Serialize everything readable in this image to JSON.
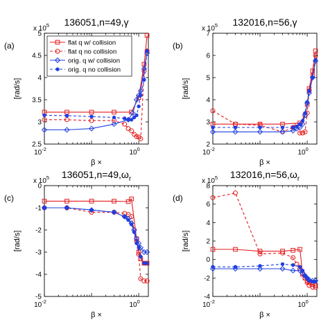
{
  "chart_data": [
    {
      "type": "line",
      "panel_label": "(a)",
      "title": "136051,n=49,γ",
      "xlabel": "β ×",
      "ylabel": "[rad/s]",
      "x_scale": "log",
      "xlim": [
        0.01,
        1.6
      ],
      "x_tick_labels": [
        "10",
        "-2",
        "10",
        "0"
      ],
      "ylim": [
        2.5,
        5
      ],
      "y_ticks": [
        "2.5",
        "3",
        "3.5",
        "4",
        "4.5",
        "5"
      ],
      "y_multiplier": [
        "x 10",
        "5"
      ],
      "grid": false,
      "legend_position": "top-left",
      "series": [
        {
          "name": "flat q w/ collision",
          "color": "#e31a1c",
          "style": "solid",
          "marker": "square",
          "x": [
            0.01,
            0.03,
            0.1,
            0.3,
            0.7,
            1.0,
            1.3,
            1.5
          ],
          "y": [
            3.22,
            3.22,
            3.22,
            3.22,
            3.22,
            3.55,
            4.3,
            4.95
          ]
        },
        {
          "name": "flat q no collision",
          "color": "#e31a1c",
          "style": "dashed",
          "marker": "circle",
          "x": [
            0.01,
            0.03,
            0.1,
            0.3,
            0.5,
            0.6,
            0.7,
            0.8,
            0.9,
            1.0,
            1.1,
            1.3,
            1.5
          ],
          "y": [
            3.05,
            3.05,
            3.03,
            3.03,
            2.95,
            2.85,
            2.8,
            2.72,
            2.67,
            2.66,
            2.62,
            4.15,
            4.6
          ]
        },
        {
          "name": "orig. q w/ collision",
          "color": "#1f3fe0",
          "style": "solid",
          "marker": "diamond",
          "x": [
            0.01,
            0.03,
            0.1,
            0.3,
            0.6,
            0.75,
            0.9,
            1.0,
            1.1,
            1.3,
            1.5
          ],
          "y": [
            2.82,
            2.82,
            2.85,
            2.95,
            3.05,
            3.2,
            3.5,
            3.6,
            3.7,
            4.2,
            4.55
          ]
        },
        {
          "name": "orig. q no collision",
          "color": "#1f3fe0",
          "style": "dashed",
          "marker": "dot",
          "x": [
            0.01,
            0.03,
            0.1,
            0.3,
            0.5,
            0.6,
            0.7,
            0.8,
            0.9,
            1.0,
            1.1,
            1.3,
            1.5
          ],
          "y": [
            3.15,
            3.14,
            3.12,
            3.1,
            3.08,
            3.05,
            3.05,
            3.1,
            3.15,
            3.35,
            3.6,
            3.95,
            4.6
          ]
        }
      ]
    },
    {
      "type": "line",
      "panel_label": "(b)",
      "title": "132016,n=56,γ",
      "xlabel": "β ×",
      "ylabel": "[rad/s]",
      "x_scale": "log",
      "xlim": [
        0.01,
        1.6
      ],
      "x_tick_labels": [
        "10",
        "-2",
        "10",
        "0"
      ],
      "ylim": [
        2,
        7
      ],
      "y_ticks": [
        "2",
        "3",
        "4",
        "5",
        "6",
        "7"
      ],
      "y_multiplier": [
        "x 10",
        "5"
      ],
      "grid": false,
      "series": [
        {
          "name": "flat q w/ collision",
          "color": "#e31a1c",
          "style": "solid",
          "marker": "square",
          "x": [
            0.01,
            0.03,
            0.1,
            0.3,
            0.7,
            0.9,
            1.0,
            1.1,
            1.3,
            1.5
          ],
          "y": [
            2.9,
            2.9,
            2.9,
            2.9,
            2.95,
            3.3,
            3.8,
            4.5,
            5.3,
            6.2
          ]
        },
        {
          "name": "flat q no collision",
          "color": "#e31a1c",
          "style": "dashed",
          "marker": "circle",
          "x": [
            0.01,
            0.03,
            0.1,
            0.3,
            0.5,
            0.6,
            0.7,
            0.8,
            0.9,
            1.0,
            1.1,
            1.3,
            1.5
          ],
          "y": [
            3.5,
            2.9,
            2.85,
            2.55,
            2.75,
            2.85,
            2.5,
            2.5,
            2.55,
            3.4,
            4.4,
            5.1,
            6.0
          ]
        },
        {
          "name": "orig. q w/ collision",
          "color": "#1f3fe0",
          "style": "solid",
          "marker": "diamond",
          "x": [
            0.01,
            0.03,
            0.1,
            0.3,
            0.5,
            0.6,
            0.7,
            0.8,
            0.9,
            1.0,
            1.1,
            1.3,
            1.5
          ],
          "y": [
            2.55,
            2.55,
            2.55,
            2.55,
            2.6,
            2.7,
            2.75,
            2.9,
            3.3,
            3.85,
            4.3,
            5.0,
            5.75
          ]
        },
        {
          "name": "orig. q no collision",
          "color": "#1f3fe0",
          "style": "dashed",
          "marker": "dot",
          "x": [
            0.01,
            0.03,
            0.1,
            0.3,
            0.5,
            0.6,
            0.7,
            0.8,
            0.9,
            1.0,
            1.1,
            1.3,
            1.5
          ],
          "y": [
            2.75,
            2.75,
            2.75,
            2.75,
            2.75,
            2.8,
            2.9,
            3.05,
            3.4,
            3.9,
            4.4,
            5.0,
            5.8
          ]
        }
      ]
    },
    {
      "type": "line",
      "panel_label": "(c)",
      "title": "136051,n=49,ω",
      "title_sub": "r",
      "xlabel": "β ×",
      "ylabel": "[rad/s]",
      "x_scale": "log",
      "xlim": [
        0.01,
        1.6
      ],
      "x_tick_labels": [
        "10",
        "-2",
        "10",
        "0"
      ],
      "ylim": [
        -5,
        0
      ],
      "y_ticks": [
        "-5",
        "-4",
        "-3",
        "-2",
        "-1",
        "0"
      ],
      "y_multiplier": [
        "x 10",
        "5"
      ],
      "grid": false,
      "series": [
        {
          "name": "flat q w/ collision",
          "color": "#e31a1c",
          "style": "solid",
          "marker": "square",
          "x": [
            0.01,
            0.03,
            0.1,
            0.3,
            0.6,
            0.7,
            0.9,
            1.0,
            1.1,
            1.3,
            1.5
          ],
          "y": [
            -0.7,
            -0.7,
            -0.7,
            -0.7,
            -0.72,
            -0.6,
            -2.4,
            -3.0,
            -3.3,
            -3.5,
            -3.5
          ]
        },
        {
          "name": "flat q no collision",
          "color": "#e31a1c",
          "style": "dashed",
          "marker": "circle",
          "x": [
            0.01,
            0.03,
            0.1,
            0.3,
            0.5,
            0.6,
            0.7,
            0.8,
            0.9,
            1.0,
            1.1,
            1.3,
            1.5
          ],
          "y": [
            -1.0,
            -1.0,
            -1.2,
            -1.2,
            -1.25,
            -1.3,
            -1.4,
            -2.0,
            -2.5,
            -3.1,
            -4.2,
            -4.3,
            -4.3
          ]
        },
        {
          "name": "orig. q w/ collision",
          "color": "#1f3fe0",
          "style": "solid",
          "marker": "diamond",
          "x": [
            0.01,
            0.03,
            0.1,
            0.3,
            0.5,
            0.6,
            0.7,
            0.8,
            0.9,
            1.0,
            1.1,
            1.3,
            1.5
          ],
          "y": [
            -1.0,
            -1.0,
            -1.1,
            -1.2,
            -1.4,
            -1.5,
            -1.7,
            -2.0,
            -2.4,
            -2.6,
            -2.8,
            -3.0,
            -3.0
          ]
        },
        {
          "name": "orig. q no collision",
          "color": "#1f3fe0",
          "style": "dashed",
          "marker": "dot",
          "x": [
            0.01,
            0.03,
            0.1,
            0.3,
            0.5,
            0.6,
            0.7,
            0.8,
            0.9,
            1.0,
            1.1,
            1.3,
            1.5
          ],
          "y": [
            -1.0,
            -1.0,
            -1.1,
            -1.2,
            -1.4,
            -1.55,
            -1.75,
            -2.1,
            -2.6,
            -2.8,
            -3.2,
            -3.5,
            -3.5
          ]
        }
      ]
    },
    {
      "type": "line",
      "panel_label": "(d)",
      "title": "132016,n=56,ω",
      "title_sub": "r",
      "xlabel": "β ×",
      "ylabel": "[rad/s]",
      "x_scale": "log",
      "xlim": [
        0.01,
        1.6
      ],
      "x_tick_labels": [
        "10",
        "-2",
        "10",
        "0"
      ],
      "ylim": [
        -4,
        8
      ],
      "y_ticks": [
        "-4",
        "-2",
        "0",
        "2",
        "4",
        "6",
        "8"
      ],
      "y_multiplier": [
        "x 10",
        "5"
      ],
      "grid": false,
      "series": [
        {
          "name": "flat q w/ collision",
          "color": "#e31a1c",
          "style": "solid",
          "marker": "square",
          "x": [
            0.01,
            0.03,
            0.1,
            0.3,
            0.5,
            0.7,
            0.8,
            0.9,
            1.0,
            1.1,
            1.3,
            1.5
          ],
          "y": [
            1.1,
            1.1,
            0.9,
            0.9,
            1.0,
            1.1,
            -1.6,
            -2.0,
            -2.3,
            -2.5,
            -2.7,
            -2.8
          ]
        },
        {
          "name": "flat q no collision",
          "color": "#e31a1c",
          "style": "dashed",
          "marker": "circle",
          "x": [
            0.01,
            0.03,
            0.1,
            0.3,
            0.5,
            0.6,
            0.7,
            0.8,
            0.9,
            1.0,
            1.1,
            1.3,
            1.5
          ],
          "y": [
            6.7,
            7.2,
            0.6,
            0.7,
            0.2,
            -0.5,
            -1.0,
            -1.5,
            -2.0,
            -2.5,
            -2.8,
            -3.0,
            -3.0
          ]
        },
        {
          "name": "orig. q w/ collision",
          "color": "#1f3fe0",
          "style": "solid",
          "marker": "diamond",
          "x": [
            0.01,
            0.03,
            0.1,
            0.3,
            0.5,
            0.7,
            0.8,
            0.9,
            1.0,
            1.1,
            1.3,
            1.5
          ],
          "y": [
            -1.0,
            -1.0,
            -1.0,
            -1.0,
            -1.2,
            -1.2,
            -1.5,
            -1.8,
            -2.0,
            -2.2,
            -2.3,
            -2.3
          ]
        },
        {
          "name": "orig. q no collision",
          "color": "#1f3fe0",
          "style": "dashed",
          "marker": "dot",
          "x": [
            0.01,
            0.03,
            0.1,
            0.3,
            0.5,
            0.7,
            0.8,
            0.9,
            1.0,
            1.1,
            1.3,
            1.5
          ],
          "y": [
            -0.8,
            -0.8,
            -0.7,
            -0.5,
            -0.6,
            -0.8,
            -1.2,
            -1.7,
            -2.0,
            -2.3,
            -2.4,
            -2.4
          ]
        }
      ]
    }
  ]
}
